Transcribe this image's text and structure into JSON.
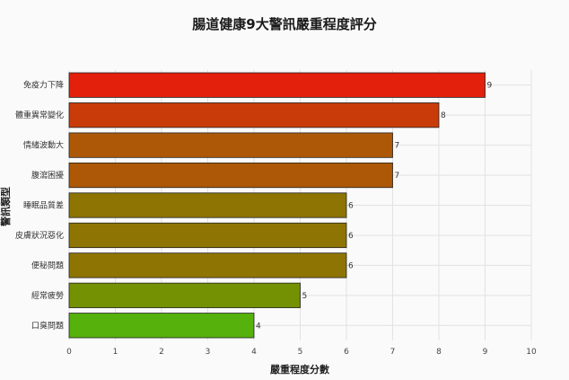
{
  "chart_data": {
    "type": "bar",
    "orientation": "horizontal",
    "title": "腸道健康9大警訊嚴重程度評分",
    "xlabel": "嚴重程度分數",
    "ylabel": "警訊類型",
    "xlim": [
      0,
      10
    ],
    "xticks": [
      "0",
      "1",
      "2",
      "3",
      "4",
      "5",
      "6",
      "7",
      "8",
      "9",
      "10"
    ],
    "grid": true,
    "categories": [
      "免疫力下降",
      "體重異常變化",
      "情緒波動大",
      "腹瀉困擾",
      "睡眠品質差",
      "皮膚狀況惡化",
      "便秘問題",
      "經常疲勞",
      "口臭問題"
    ],
    "values": [
      9,
      8,
      7,
      7,
      6,
      6,
      6,
      5,
      4
    ],
    "colors": [
      "#e3200c",
      "#c93c0a",
      "#ac5807",
      "#ac5807",
      "#8e7503",
      "#8e7503",
      "#8e7503",
      "#749003",
      "#56b10c"
    ]
  }
}
